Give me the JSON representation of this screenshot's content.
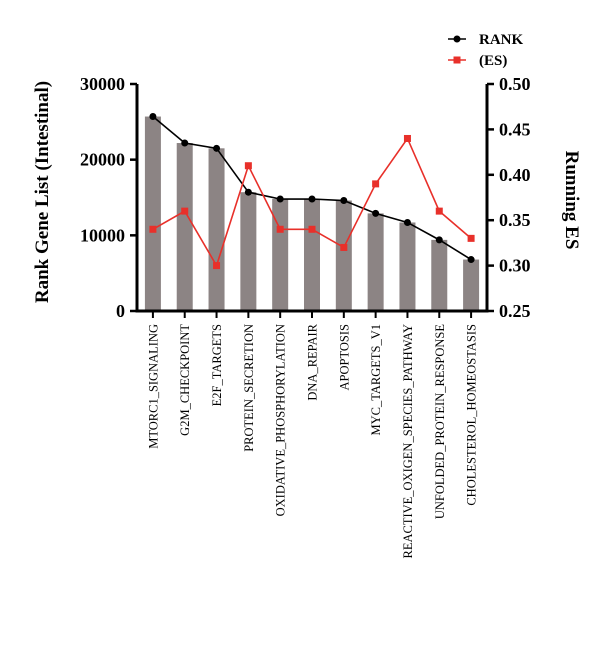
{
  "chart_data": {
    "type": "bar",
    "categories": [
      "MTORC1_SIGNALING",
      "G2M_CHECKPOINT",
      "E2F_TARGETS",
      "PROTEIN_SECRETION",
      "OXIDATIVE_PHOSPHORYLATION",
      "DNA_REPAIR",
      "APOPTOSIS",
      "MYC_TARGETS_V1",
      "REACTIVE_OXIGEN_SPECIES_PATHWAY",
      "UNFOLDED_PROTEIN_RESPONSE",
      "CHOLESTEROL_HOMEOSTASIS"
    ],
    "series": [
      {
        "name": "RANK",
        "axis": "left",
        "style": "bar+line",
        "values": [
          25700,
          22200,
          21500,
          15700,
          14800,
          14800,
          14600,
          12900,
          11700,
          9400,
          6800
        ]
      },
      {
        "name": "(ES)",
        "axis": "right",
        "style": "line",
        "values": [
          0.34,
          0.36,
          0.3,
          0.41,
          0.34,
          0.34,
          0.32,
          0.39,
          0.44,
          0.36,
          0.33
        ]
      }
    ],
    "ylabel": "Rank Gene List (Intestinal)",
    "y2label": "Running ES",
    "ylim": [
      0,
      30000
    ],
    "y2lim": [
      0.25,
      0.5
    ],
    "yticks": [
      "0",
      "10000",
      "20000",
      "30000"
    ],
    "y2ticks": [
      "0.25",
      "0.30",
      "0.35",
      "0.40",
      "0.45",
      "0.50"
    ],
    "legend_position": "top-right",
    "colors": {
      "bar": "#8c8484",
      "rank_line": "#000000",
      "es_line": "#e8302a"
    }
  }
}
